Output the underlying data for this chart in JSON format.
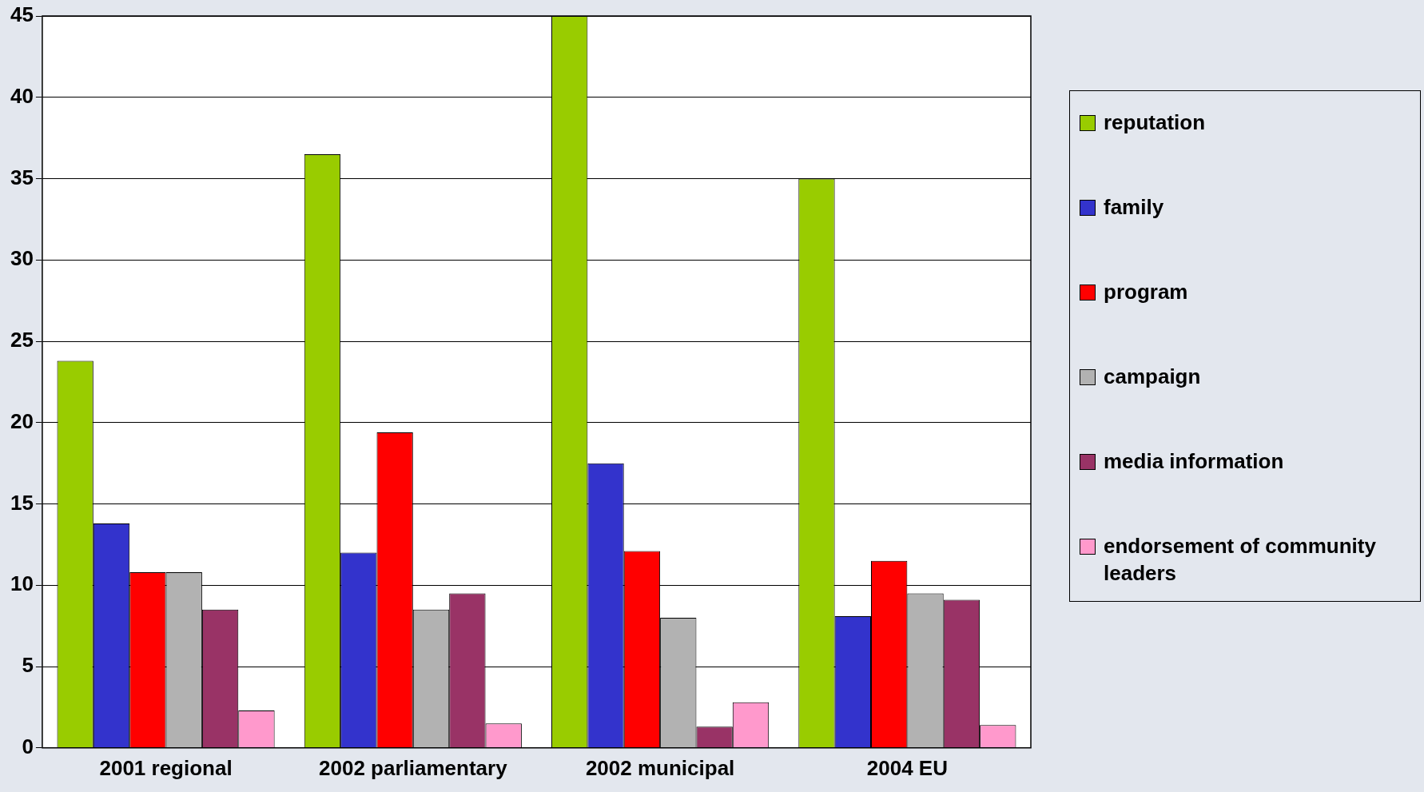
{
  "chart_data": {
    "type": "bar",
    "categories": [
      "2001 regional",
      "2002 parliamentary",
      "2002 municipal",
      "2004 EU"
    ],
    "series": [
      {
        "name": "reputation",
        "color": "#99cc00",
        "values": [
          23.8,
          36.5,
          45,
          35
        ]
      },
      {
        "name": "family",
        "color": "#3333cc",
        "values": [
          13.8,
          12,
          17.5,
          8.1
        ]
      },
      {
        "name": "program",
        "color": "#ff0000",
        "values": [
          10.8,
          19.4,
          12.1,
          11.5
        ]
      },
      {
        "name": "campaign",
        "color": "#b2b2b2",
        "values": [
          10.8,
          8.5,
          8,
          9.5
        ]
      },
      {
        "name": "media information",
        "color": "#993366",
        "values": [
          8.5,
          9.5,
          1.3,
          9.1
        ]
      },
      {
        "name": "endorsement of community leaders",
        "color": "#ff99cc",
        "values": [
          2.3,
          1.5,
          2.8,
          1.4
        ]
      }
    ],
    "ylim": [
      0,
      45
    ],
    "yticks": [
      0,
      5,
      10,
      15,
      20,
      25,
      30,
      35,
      40,
      45
    ],
    "grid": "y",
    "legend": "right"
  }
}
